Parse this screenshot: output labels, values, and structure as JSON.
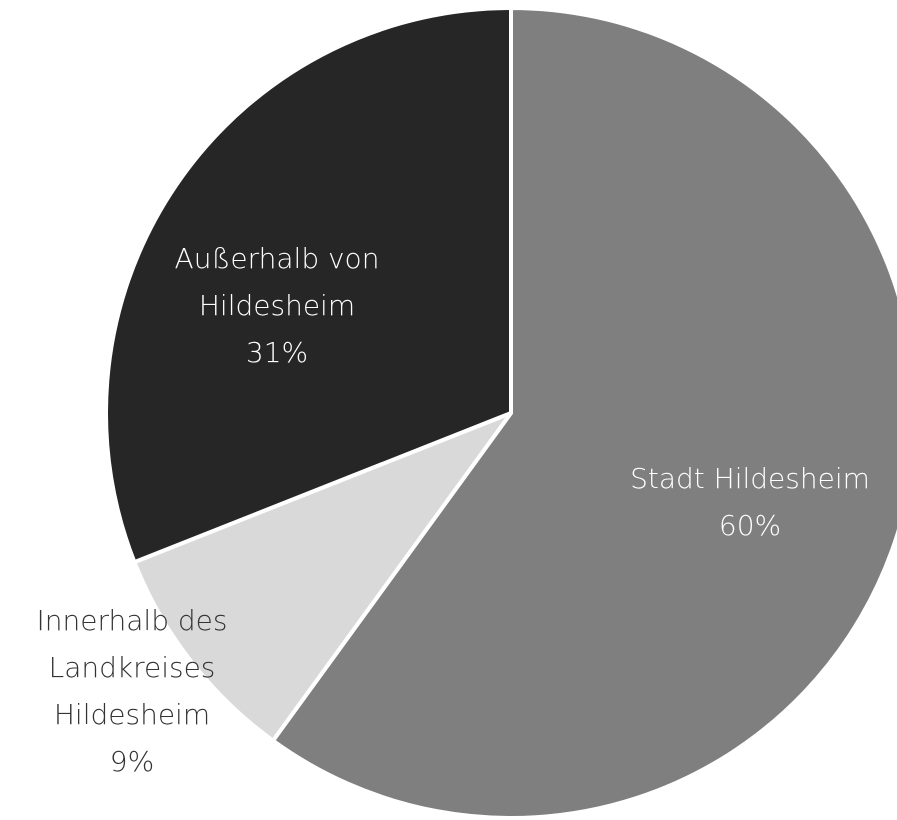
{
  "chart_data": {
    "type": "pie",
    "categories": [
      "Stadt Hildesheim",
      "Innerhalb des Landkreises Hildesheim",
      "Außerhalb von Hildesheim"
    ],
    "values": [
      60,
      9,
      31
    ],
    "value_labels": [
      "60%",
      "9%",
      "31%"
    ],
    "colors": [
      "#7f7f7f",
      "#d9d9d9",
      "#262626"
    ]
  }
}
